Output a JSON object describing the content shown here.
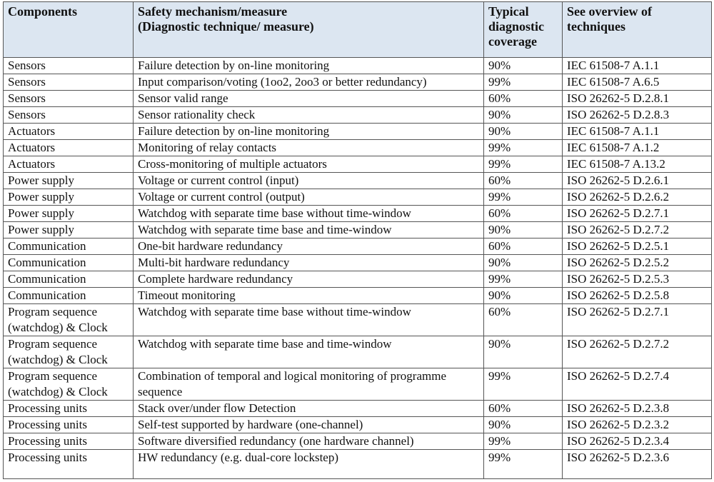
{
  "headers": [
    "Components",
    "Safety mechanism/measure\n(Diagnostic technique/ measure)",
    "Typical diagnostic coverage",
    "See overview of techniques"
  ],
  "rows": [
    [
      "Sensors",
      "Failure detection by on-line monitoring",
      "90%",
      "IEC 61508-7 A.1.1"
    ],
    [
      "Sensors",
      "Input comparison/voting (1oo2, 2oo3 or better redundancy)",
      "99%",
      "IEC 61508-7 A.6.5"
    ],
    [
      "Sensors",
      "Sensor valid range",
      "60%",
      "ISO 26262-5 D.2.8.1"
    ],
    [
      "Sensors",
      "Sensor rationality check",
      "90%",
      "ISO 26262-5 D.2.8.3"
    ],
    [
      "Actuators",
      "Failure detection by on-line monitoring",
      "90%",
      "IEC 61508-7 A.1.1"
    ],
    [
      "Actuators",
      "Monitoring of relay contacts",
      "99%",
      "IEC 61508-7 A.1.2"
    ],
    [
      "Actuators",
      "Cross-monitoring of multiple actuators",
      "99%",
      "IEC 61508-7 A.13.2"
    ],
    [
      "Power supply",
      "Voltage or current control (input)",
      "60%",
      "ISO 26262-5 D.2.6.1"
    ],
    [
      "Power supply",
      "Voltage or current control (output)",
      "99%",
      "ISO 26262-5 D.2.6.2"
    ],
    [
      "Power supply",
      "Watchdog with separate time base without time-window",
      "60%",
      "ISO 26262-5 D.2.7.1"
    ],
    [
      "Power supply",
      "Watchdog with separate time base and time-window",
      "90%",
      "ISO 26262-5 D.2.7.2"
    ],
    [
      "Communication",
      "One-bit hardware redundancy",
      "60%",
      "ISO 26262-5 D.2.5.1"
    ],
    [
      "Communication",
      "Multi-bit hardware redundancy",
      "90%",
      "ISO 26262-5 D.2.5.2"
    ],
    [
      "Communication",
      "Complete hardware redundancy",
      "99%",
      "ISO 26262-5 D.2.5.3"
    ],
    [
      "Communication",
      "Timeout monitoring",
      "90%",
      "ISO 26262-5 D.2.5.8"
    ],
    [
      "Program sequence (watchdog) & Clock",
      "Watchdog with separate time base without time-window",
      "60%",
      "ISO 26262-5 D.2.7.1"
    ],
    [
      "Program sequence (watchdog) & Clock",
      "Watchdog with separate time base and time-window",
      "90%",
      "ISO 26262-5 D.2.7.2"
    ],
    [
      "Program sequence (watchdog) & Clock",
      "Combination of temporal and logical monitoring of programme sequence",
      "99%",
      "ISO 26262-5 D.2.7.4"
    ],
    [
      "Processing units",
      "Stack over/under flow Detection",
      "60%",
      "ISO 26262-5 D.2.3.8"
    ],
    [
      "Processing units",
      "Self-test supported by hardware (one-channel)",
      "90%",
      "ISO 26262-5 D.2.3.2"
    ],
    [
      "Processing units",
      "Software diversified redundancy (one hardware channel)",
      "99%",
      "ISO 26262-5 D.2.3.4"
    ],
    [
      "Processing units",
      "HW redundancy (e.g. dual-core lockstep)",
      "99%",
      "ISO 26262-5 D.2.3.6"
    ]
  ],
  "colors": {
    "header_bg": "#dce6f1",
    "border": "#555555"
  }
}
